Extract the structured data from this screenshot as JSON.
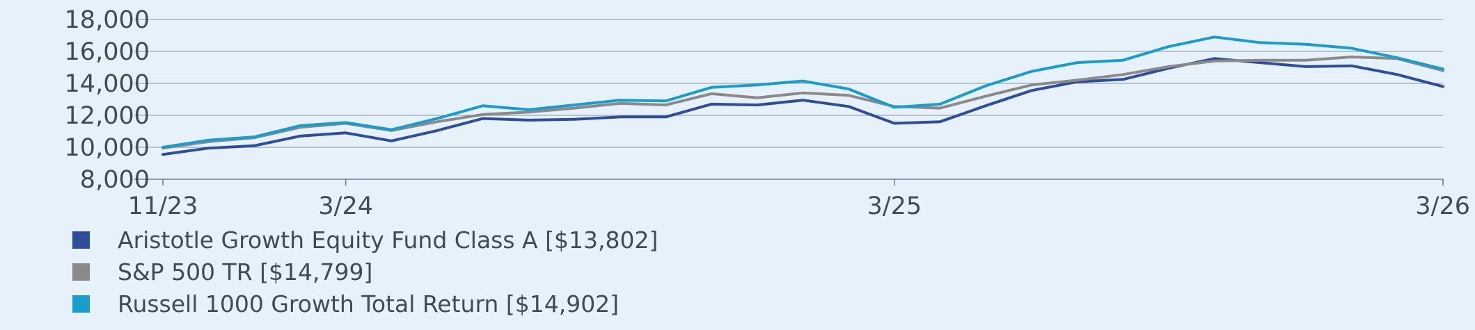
{
  "chart_data": {
    "type": "line",
    "x": [
      "11/23",
      "12/23",
      "1/24",
      "2/24",
      "3/24",
      "4/24",
      "5/24",
      "6/24",
      "7/24",
      "8/24",
      "9/24",
      "10/24",
      "11/24",
      "12/24",
      "1/25",
      "2/25",
      "3/25",
      "4/25",
      "5/25",
      "6/25",
      "7/25",
      "8/25",
      "9/25",
      "10/25",
      "11/25",
      "12/25",
      "1/26",
      "2/26",
      "3/26"
    ],
    "x_tick_labels": [
      "11/23",
      "3/24",
      "3/25",
      "3/26"
    ],
    "x_tick_index": [
      0,
      4,
      16,
      28
    ],
    "y_tick_labels": [
      "18,000",
      "16,000",
      "14,000",
      "12,000",
      "10,000",
      "8,000"
    ],
    "y_ticks": [
      18000,
      16000,
      14000,
      12000,
      10000,
      8000
    ],
    "ylim": [
      8000,
      18000
    ],
    "grid": true,
    "legend_position": "bottom-left",
    "series": [
      {
        "name": "Aristotle Growth Equity Fund Class A [$13,802]",
        "color": "#2f4e9a",
        "values": [
          9550,
          9950,
          10100,
          10700,
          10900,
          10400,
          11050,
          11800,
          11700,
          11750,
          11900,
          11900,
          12700,
          12650,
          12950,
          12550,
          11500,
          11600,
          12600,
          13550,
          14100,
          14250,
          14950,
          15550,
          15300,
          15050,
          15100,
          14550,
          13802
        ]
      },
      {
        "name": "S&P 500 TR [$14,799]",
        "color": "#8a8a8a",
        "values": [
          9950,
          10350,
          10600,
          11250,
          11500,
          11050,
          11600,
          12050,
          12200,
          12450,
          12750,
          12650,
          13350,
          13100,
          13400,
          13250,
          12550,
          12450,
          13200,
          13900,
          14200,
          14550,
          15050,
          15400,
          15450,
          15450,
          15650,
          15550,
          14799
        ]
      },
      {
        "name": "Russell 1000 Growth Total Return [$14,902]",
        "color": "#1a9ccc",
        "values": [
          10000,
          10450,
          10650,
          11350,
          11550,
          11100,
          11800,
          12600,
          12350,
          12650,
          12950,
          12900,
          13750,
          13900,
          14150,
          13650,
          12500,
          12700,
          13850,
          14750,
          15300,
          15450,
          16300,
          16900,
          16550,
          16450,
          16200,
          15600,
          14902
        ]
      }
    ]
  }
}
